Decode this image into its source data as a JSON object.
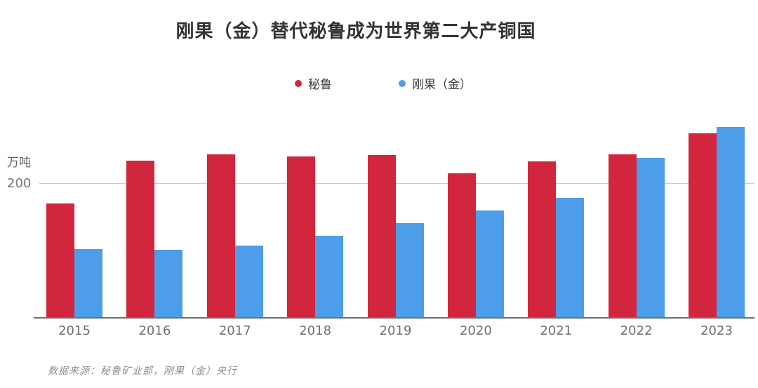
{
  "title": "刚果（金）替代秘鲁成为世界第二大产铜国",
  "y_axis": {
    "unit_label": "万吨",
    "tick_label": "200"
  },
  "source_note": "数据来源：秘鲁矿业部，刚果（金）央行",
  "colors": {
    "peru_red": "#D2263E",
    "drc_blue": "#4D9DE8",
    "gridline": "#cbcbcb",
    "baseline": "#6f6f6f"
  },
  "chart_data": {
    "type": "bar",
    "title": "刚果（金）替代秘鲁成为世界第二大产铜国",
    "categories": [
      "2015",
      "2016",
      "2017",
      "2018",
      "2019",
      "2020",
      "2021",
      "2022",
      "2023"
    ],
    "series": [
      {
        "name": "秘鲁",
        "color": "#D2263E",
        "values": [
          170,
          234,
          244,
          240,
          243,
          215,
          233,
          244,
          275
        ]
      },
      {
        "name": "刚果（金）",
        "color": "#4D9DE8",
        "values": [
          103,
          101,
          108,
          122,
          141,
          160,
          179,
          238,
          284
        ]
      }
    ],
    "xlabel": "",
    "ylabel": "万吨",
    "ylim": [
      0,
      300
    ],
    "yticks_shown": [
      200
    ],
    "grid": "single-horizontal-line-at-200",
    "legend_position": "top-center"
  }
}
